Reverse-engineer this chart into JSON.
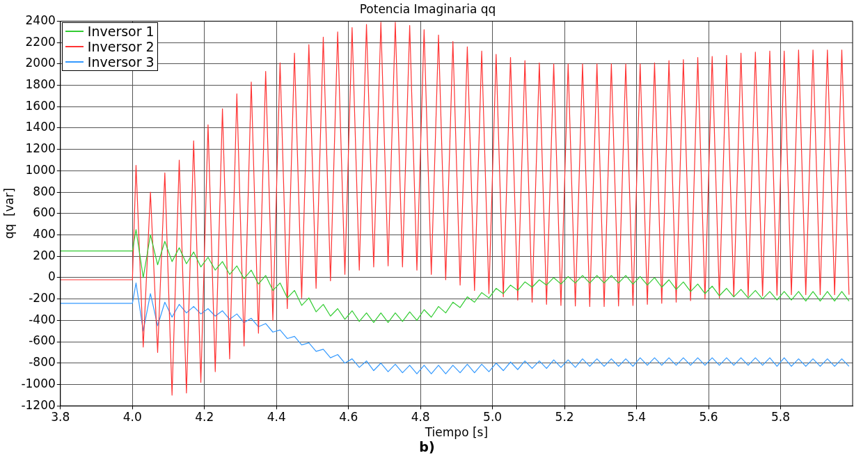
{
  "chart_data": {
    "type": "line",
    "title": "Potencia Imaginaria qq",
    "xlabel": "Tiempo [s]",
    "ylabel": "qq  [var]",
    "annotations": [
      "b)"
    ],
    "xlim": [
      3.8,
      6.0
    ],
    "xticks": [
      3.8,
      {
        "value": 4,
        "label": "4.0"
      },
      4.2,
      4.4,
      4.6,
      4.8,
      {
        "value": 5,
        "label": "5.0"
      },
      5.2,
      5.4,
      5.6,
      5.8
    ],
    "ylim": [
      -1200,
      2400
    ],
    "yticks": [
      -1200,
      -1000,
      -800,
      -600,
      -400,
      -200,
      0,
      200,
      400,
      600,
      800,
      1000,
      1200,
      1400,
      1600,
      1800,
      2000,
      2200,
      2400
    ],
    "grid": true,
    "legend": "top left",
    "marker": "none",
    "line_style": "solid",
    "x": [
      3.8,
      4.0,
      4.01,
      4.03,
      4.05,
      4.07,
      4.09,
      4.11,
      4.13,
      4.15,
      4.17,
      4.19,
      4.21,
      4.23,
      4.25,
      4.27,
      4.29,
      4.31,
      4.33,
      4.35,
      4.37,
      4.39,
      4.41,
      4.43,
      4.45,
      4.47,
      4.49,
      4.51,
      4.53,
      4.55,
      4.57,
      4.59,
      4.61,
      4.63,
      4.65,
      4.67,
      4.69,
      4.71,
      4.73,
      4.75,
      4.77,
      4.79,
      4.81,
      4.83,
      4.85,
      4.87,
      4.89,
      4.91,
      4.93,
      4.95,
      4.97,
      4.99,
      5.01,
      5.03,
      5.05,
      5.07,
      5.09,
      5.11,
      5.13,
      5.15,
      5.17,
      5.19,
      5.21,
      5.23,
      5.25,
      5.27,
      5.29,
      5.31,
      5.33,
      5.35,
      5.37,
      5.39,
      5.41,
      5.43,
      5.45,
      5.47,
      5.49,
      5.51,
      5.53,
      5.55,
      5.57,
      5.59,
      5.61,
      5.63,
      5.65,
      5.67,
      5.69,
      5.71,
      5.73,
      5.75,
      5.77,
      5.79,
      5.81,
      5.83,
      5.85,
      5.87,
      5.89,
      5.91,
      5.93,
      5.95,
      5.97,
      5.99
    ],
    "series": [
      {
        "name": "Inversor 1",
        "color": "#33cc33",
        "values": [
          250,
          250,
          450,
          0,
          400,
          120,
          340,
          150,
          280,
          130,
          240,
          100,
          190,
          70,
          150,
          30,
          110,
          -10,
          70,
          -60,
          20,
          -120,
          -50,
          -190,
          -120,
          -260,
          -190,
          -320,
          -250,
          -360,
          -290,
          -390,
          -310,
          -410,
          -330,
          -420,
          -330,
          -420,
          -330,
          -410,
          -320,
          -400,
          -300,
          -370,
          -270,
          -330,
          -230,
          -280,
          -180,
          -230,
          -140,
          -190,
          -100,
          -150,
          -70,
          -120,
          -40,
          -90,
          -20,
          -70,
          0,
          -60,
          10,
          -50,
          20,
          -50,
          20,
          -50,
          20,
          -50,
          20,
          -60,
          10,
          -70,
          0,
          -90,
          -20,
          -110,
          -40,
          -130,
          -60,
          -150,
          -80,
          -170,
          -100,
          -180,
          -110,
          -190,
          -120,
          -200,
          -130,
          -210,
          -130,
          -210,
          -130,
          -220,
          -130,
          -220,
          -130,
          -220,
          -130,
          -220
        ]
      },
      {
        "name": "Inversor 2",
        "color": "#ff3333",
        "values": [
          -20,
          -20,
          1050,
          -650,
          800,
          -700,
          980,
          -1100,
          1100,
          -1080,
          1280,
          -980,
          1430,
          -880,
          1580,
          -760,
          1720,
          -640,
          1830,
          -520,
          1930,
          -400,
          2010,
          -290,
          2100,
          -190,
          2180,
          -100,
          2250,
          -30,
          2300,
          30,
          2340,
          70,
          2370,
          100,
          2390,
          110,
          2390,
          100,
          2360,
          70,
          2320,
          30,
          2270,
          -20,
          2210,
          -70,
          2160,
          -120,
          2120,
          -150,
          2090,
          -180,
          2060,
          -210,
          2030,
          -230,
          2010,
          -250,
          2000,
          -260,
          2000,
          -265,
          2000,
          -270,
          2000,
          -270,
          2000,
          -265,
          2000,
          -260,
          2000,
          -250,
          2010,
          -240,
          2030,
          -230,
          2040,
          -215,
          2060,
          -200,
          2070,
          -190,
          2080,
          -180,
          2100,
          -175,
          2110,
          -170,
          2120,
          -165,
          2120,
          -160,
          2130,
          -160,
          2130,
          -160,
          2130,
          -160,
          2130,
          -160
        ]
      },
      {
        "name": "Inversor 3",
        "color": "#3399ff",
        "values": [
          -240,
          -240,
          -50,
          -500,
          -150,
          -450,
          -230,
          -370,
          -250,
          -330,
          -270,
          -340,
          -290,
          -360,
          -310,
          -390,
          -340,
          -420,
          -380,
          -460,
          -430,
          -510,
          -490,
          -570,
          -550,
          -630,
          -610,
          -690,
          -670,
          -750,
          -720,
          -800,
          -760,
          -840,
          -780,
          -870,
          -800,
          -880,
          -810,
          -890,
          -820,
          -900,
          -820,
          -900,
          -820,
          -900,
          -820,
          -890,
          -810,
          -890,
          -810,
          -880,
          -800,
          -870,
          -790,
          -860,
          -780,
          -850,
          -780,
          -850,
          -770,
          -840,
          -770,
          -840,
          -760,
          -830,
          -760,
          -830,
          -760,
          -830,
          -760,
          -830,
          -750,
          -820,
          -750,
          -820,
          -750,
          -820,
          -750,
          -820,
          -750,
          -820,
          -750,
          -820,
          -750,
          -820,
          -750,
          -820,
          -750,
          -820,
          -750,
          -830,
          -750,
          -830,
          -760,
          -830,
          -760,
          -830,
          -760,
          -830,
          -760,
          -830
        ]
      }
    ]
  }
}
